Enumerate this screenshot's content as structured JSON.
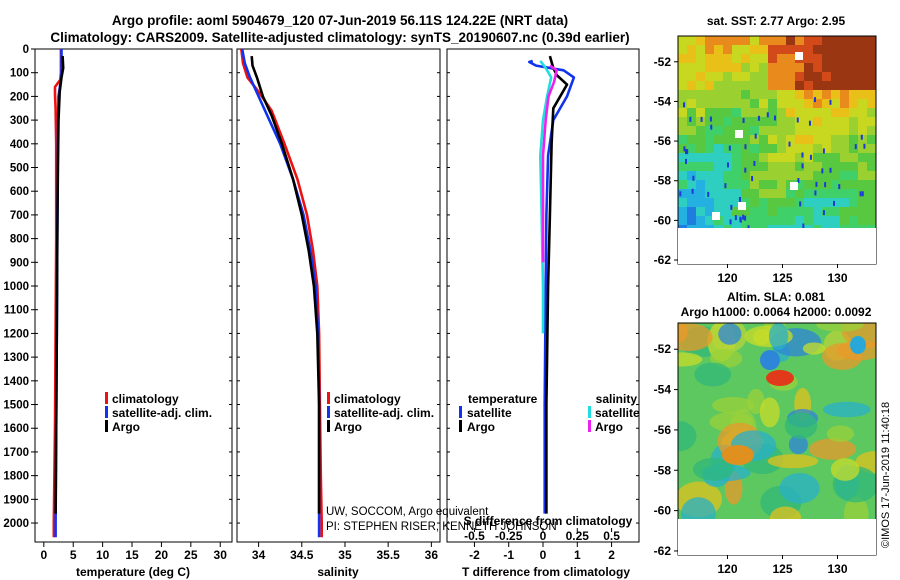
{
  "header": {
    "title_line1": "Argo profile: aoml 5904679_120 07-Jun-2019 56.11S 124.22E (NRT data)",
    "title_line2": "Climatology: CARS2009. Satellite-adjusted climatology: synTS_20190607.nc (0.39d earlier)"
  },
  "credits": {
    "line1": "UW, SOCCOM, Argo equivalent",
    "line2": "PI: STEPHEN RISER, KENNETH JOHNSON",
    "timestamp": "©IMOS 17-Jun-2019 11:40:18"
  },
  "colors": {
    "climatology": "#ee1111",
    "satellite": "#1133ee",
    "argo": "#000000",
    "sal_satellite": "#22dddd",
    "sal_argo": "#ee22ee"
  },
  "chart_data": [
    {
      "id": "temperature",
      "type": "line",
      "xlabel": "temperature (deg C)",
      "xlim": [
        -1.5,
        32
      ],
      "xticks": [
        "0",
        "5",
        "10",
        "15",
        "20",
        "25",
        "30"
      ],
      "xtick_values": [
        0,
        5,
        10,
        15,
        20,
        25,
        30
      ],
      "ylim": [
        2080,
        0
      ],
      "yticks": [
        "0",
        "100",
        "200",
        "300",
        "400",
        "500",
        "600",
        "700",
        "800",
        "900",
        "1000",
        "1100",
        "1200",
        "1300",
        "1400",
        "1500",
        "1600",
        "1700",
        "1800",
        "1900",
        "2000"
      ],
      "ytick_values": [
        0,
        100,
        200,
        300,
        400,
        500,
        600,
        700,
        800,
        900,
        1000,
        1100,
        1200,
        1300,
        1400,
        1500,
        1600,
        1700,
        1800,
        1900,
        2000
      ],
      "legend": [
        "climatology",
        "satellite-adj. clim.",
        "Argo"
      ],
      "series": [
        {
          "name": "climatology",
          "color_key": "climatology",
          "points": [
            [
              2.9,
              0
            ],
            [
              2.9,
              100
            ],
            [
              2.8,
              130
            ],
            [
              1.9,
              160
            ],
            [
              1.9,
              190
            ],
            [
              2.0,
              250
            ],
            [
              2.1,
              400
            ],
            [
              2.1,
              800
            ],
            [
              2.0,
              1200
            ],
            [
              1.9,
              1600
            ],
            [
              1.7,
              2000
            ],
            [
              1.7,
              2060
            ]
          ]
        },
        {
          "name": "satellite-adj. clim.",
          "color_key": "satellite",
          "points": [
            [
              3.0,
              0
            ],
            [
              3.0,
              100
            ],
            [
              2.9,
              130
            ],
            [
              2.5,
              200
            ],
            [
              2.4,
              400
            ],
            [
              2.3,
              800
            ],
            [
              2.2,
              1200
            ],
            [
              2.1,
              1600
            ],
            [
              2.0,
              2000
            ],
            [
              2.0,
              2060
            ]
          ]
        },
        {
          "name": "Argo",
          "color_key": "argo",
          "points": [
            [
              3.2,
              30
            ],
            [
              3.3,
              80
            ],
            [
              3.0,
              120
            ],
            [
              2.7,
              180
            ],
            [
              2.5,
              300
            ],
            [
              2.4,
              500
            ],
            [
              2.3,
              800
            ],
            [
              2.2,
              1200
            ],
            [
              2.1,
              1600
            ],
            [
              2.0,
              1960
            ]
          ]
        }
      ]
    },
    {
      "id": "salinity",
      "type": "line",
      "xlabel": "salinity",
      "xlim": [
        33.75,
        36.1
      ],
      "xticks": [
        "34",
        "34.5",
        "35",
        "35.5",
        "36"
      ],
      "xtick_values": [
        34,
        34.5,
        35,
        35.5,
        36
      ],
      "ylim": [
        2080,
        0
      ],
      "legend": [
        "climatology",
        "satellite-adj. clim.",
        "Argo"
      ],
      "series": [
        {
          "name": "climatology",
          "color_key": "climatology",
          "points": [
            [
              33.8,
              0
            ],
            [
              33.82,
              60
            ],
            [
              33.87,
              120
            ],
            [
              34.0,
              180
            ],
            [
              34.15,
              260
            ],
            [
              34.3,
              400
            ],
            [
              34.45,
              550
            ],
            [
              34.56,
              700
            ],
            [
              34.63,
              850
            ],
            [
              34.68,
              1000
            ],
            [
              34.7,
              1200
            ],
            [
              34.71,
              1500
            ],
            [
              34.72,
              1800
            ],
            [
              34.73,
              2000
            ],
            [
              34.73,
              2060
            ]
          ]
        },
        {
          "name": "satellite-adj. clim.",
          "color_key": "satellite",
          "points": [
            [
              33.81,
              0
            ],
            [
              33.84,
              60
            ],
            [
              33.9,
              120
            ],
            [
              34.0,
              200
            ],
            [
              34.1,
              280
            ],
            [
              34.25,
              400
            ],
            [
              34.4,
              550
            ],
            [
              34.52,
              700
            ],
            [
              34.6,
              850
            ],
            [
              34.66,
              1000
            ],
            [
              34.69,
              1200
            ],
            [
              34.7,
              1500
            ],
            [
              34.7,
              1800
            ],
            [
              34.7,
              2000
            ],
            [
              34.7,
              2060
            ]
          ]
        },
        {
          "name": "Argo",
          "color_key": "argo",
          "points": [
            [
              33.92,
              30
            ],
            [
              33.93,
              70
            ],
            [
              33.98,
              120
            ],
            [
              34.05,
              200
            ],
            [
              34.15,
              280
            ],
            [
              34.27,
              400
            ],
            [
              34.4,
              550
            ],
            [
              34.5,
              700
            ],
            [
              34.58,
              850
            ],
            [
              34.64,
              1000
            ],
            [
              34.68,
              1200
            ],
            [
              34.7,
              1500
            ],
            [
              34.7,
              1800
            ],
            [
              34.7,
              1960
            ]
          ]
        }
      ]
    },
    {
      "id": "difference",
      "type": "line",
      "xlabel": "T difference from climatology",
      "xlim": [
        -2.8,
        2.8
      ],
      "xticks": [
        "-2",
        "-1",
        "0",
        "1",
        "2"
      ],
      "xtick_values": [
        -2,
        -1,
        0,
        1,
        2
      ],
      "top_axis_label": "S difference from climatology",
      "top_ticks": [
        "-0.5",
        "-0.25",
        "0",
        "0.25",
        "0.5"
      ],
      "top_tick_values": [
        -0.5,
        -0.25,
        0,
        0.25,
        0.5
      ],
      "top_xlim": [
        -0.7,
        0.7
      ],
      "ylim": [
        2080,
        0
      ],
      "legend_temperature_title": "temperature",
      "legend_salinity_title": "salinity",
      "legend_temperature": [
        "satellite",
        "Argo"
      ],
      "legend_salinity": [
        "satellite",
        "Argo"
      ],
      "series": [
        {
          "name": "temperature satellite",
          "color_key": "satellite",
          "axis": "T",
          "points": [
            [
              -0.3,
              50
            ],
            [
              -0.4,
              55
            ],
            [
              -0.2,
              70
            ],
            [
              0.6,
              90
            ],
            [
              0.9,
              120
            ],
            [
              0.7,
              200
            ],
            [
              0.3,
              300
            ],
            [
              0.15,
              450
            ],
            [
              0.1,
              700
            ],
            [
              0.08,
              1000
            ],
            [
              0.05,
              1500
            ],
            [
              0.05,
              1960
            ]
          ]
        },
        {
          "name": "temperature Argo",
          "color_key": "argo",
          "axis": "T",
          "points": [
            [
              0.2,
              30
            ],
            [
              0.3,
              80
            ],
            [
              0.4,
              110
            ],
            [
              0.7,
              150
            ],
            [
              0.3,
              250
            ],
            [
              0.25,
              400
            ],
            [
              0.2,
              700
            ],
            [
              0.15,
              1000
            ],
            [
              0.1,
              1500
            ],
            [
              0.1,
              1960
            ]
          ]
        },
        {
          "name": "salinity satellite",
          "color_key": "sal_satellite",
          "axis": "S",
          "points": [
            [
              -0.02,
              50
            ],
            [
              0.02,
              80
            ],
            [
              0.06,
              120
            ],
            [
              0.03,
              200
            ],
            [
              0.0,
              300
            ],
            [
              -0.02,
              450
            ],
            [
              -0.01,
              700
            ],
            [
              0.0,
              1000
            ],
            [
              0.0,
              1200
            ]
          ]
        },
        {
          "name": "salinity Argo",
          "color_key": "sal_argo",
          "axis": "S",
          "points": [
            [
              0.05,
              70
            ],
            [
              0.1,
              90
            ],
            [
              0.08,
              140
            ],
            [
              0.04,
              200
            ],
            [
              0.02,
              300
            ],
            [
              0.0,
              450
            ],
            [
              0.0,
              700
            ],
            [
              0.0,
              900
            ]
          ]
        }
      ]
    }
  ],
  "maps": {
    "sst": {
      "title": "sat. SST: 2.77 Argo: 2.95",
      "yticks": [
        "-52",
        "-54",
        "-56",
        "-58",
        "-60",
        "-62"
      ],
      "ytick_values": [
        -52,
        -54,
        -56,
        -58,
        -60,
        -62
      ],
      "xticks": [
        "120",
        "125",
        "130"
      ],
      "xtick_values": [
        120,
        125,
        130
      ],
      "lon_range": [
        115.5,
        133.5
      ],
      "lat_range": [
        -50.7,
        -62.2
      ]
    },
    "sla": {
      "title_line1": "Altim. SLA: 0.081",
      "title_line2": "Argo h1000: 0.0064 h2000: 0.0092",
      "yticks": [
        "-52",
        "-54",
        "-56",
        "-58",
        "-60",
        "-62"
      ],
      "ytick_values": [
        -52,
        -54,
        -56,
        -58,
        -60,
        -62
      ],
      "xticks": [
        "120",
        "125",
        "130"
      ],
      "xtick_values": [
        120,
        125,
        130
      ],
      "lon_range": [
        115.5,
        133.5
      ],
      "lat_range": [
        -50.7,
        -62.2
      ]
    }
  }
}
